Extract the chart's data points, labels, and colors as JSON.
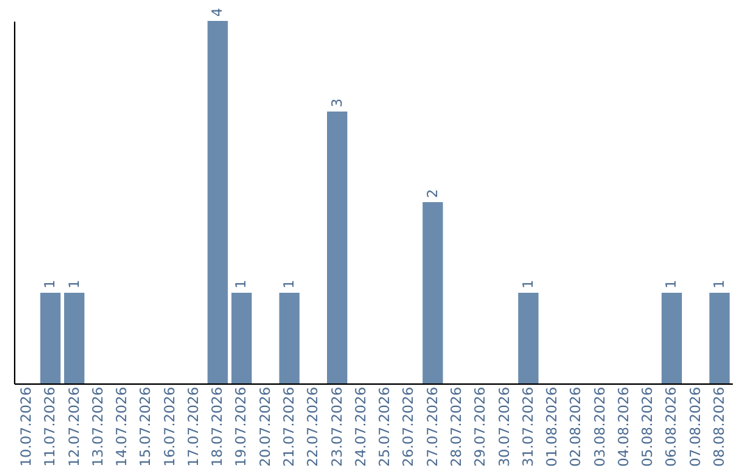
{
  "chart_data": {
    "type": "bar",
    "categories": [
      "10.07.2026",
      "11.07.2026",
      "12.07.2026",
      "13.07.2026",
      "14.07.2026",
      "15.07.2026",
      "16.07.2026",
      "17.07.2026",
      "18.07.2026",
      "19.07.2026",
      "20.07.2026",
      "21.07.2026",
      "22.07.2026",
      "23.07.2026",
      "24.07.2026",
      "25.07.2026",
      "26.07.2026",
      "27.07.2026",
      "28.07.2026",
      "29.07.2026",
      "30.07.2026",
      "31.07.2026",
      "01.08.2026",
      "02.08.2026",
      "03.08.2026",
      "04.08.2026",
      "05.08.2026",
      "06.08.2026",
      "07.08.2026",
      "08.08.2026"
    ],
    "values": [
      0,
      1,
      1,
      0,
      0,
      0,
      0,
      0,
      4,
      1,
      0,
      1,
      0,
      3,
      0,
      0,
      0,
      2,
      0,
      0,
      0,
      1,
      0,
      0,
      0,
      0,
      0,
      1,
      0,
      1
    ],
    "value_labels": [
      null,
      "1",
      "1",
      null,
      null,
      null,
      null,
      null,
      "4",
      "1",
      null,
      "1",
      null,
      "3",
      null,
      null,
      null,
      "2",
      null,
      null,
      null,
      "1",
      null,
      null,
      null,
      null,
      null,
      "1",
      null,
      "1"
    ],
    "color": "#6a8bad",
    "tick_labels": "x"
  }
}
